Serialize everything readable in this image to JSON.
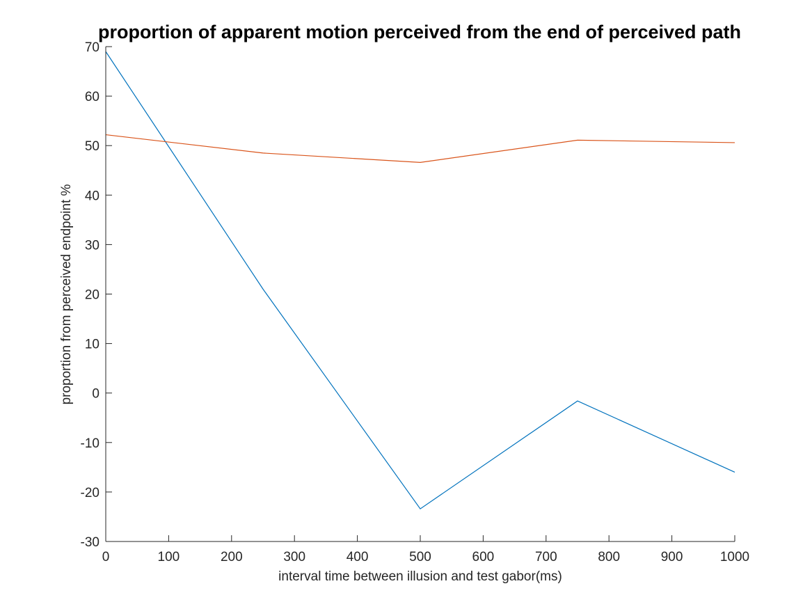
{
  "chart_data": {
    "type": "line",
    "title": "proportion of apparent motion perceived from the end of perceived path",
    "xlabel": "interval time between illusion and test gabor(ms)",
    "ylabel": "proportion from perceived endpoint %",
    "xlim": [
      0,
      1000
    ],
    "ylim": [
      -30,
      70
    ],
    "xticks": [
      0,
      100,
      200,
      300,
      400,
      500,
      600,
      700,
      800,
      900,
      1000
    ],
    "yticks": [
      -30,
      -20,
      -10,
      0,
      10,
      20,
      30,
      40,
      50,
      60,
      70
    ],
    "grid": false,
    "x": [
      0,
      250,
      500,
      750,
      1000
    ],
    "series": [
      {
        "color": "#0072BD",
        "values": [
          69,
          21,
          -23.4,
          -1.6,
          -16
        ]
      },
      {
        "color": "#D95319",
        "values": [
          52.2,
          48.5,
          46.6,
          51.1,
          50.6
        ]
      }
    ]
  }
}
